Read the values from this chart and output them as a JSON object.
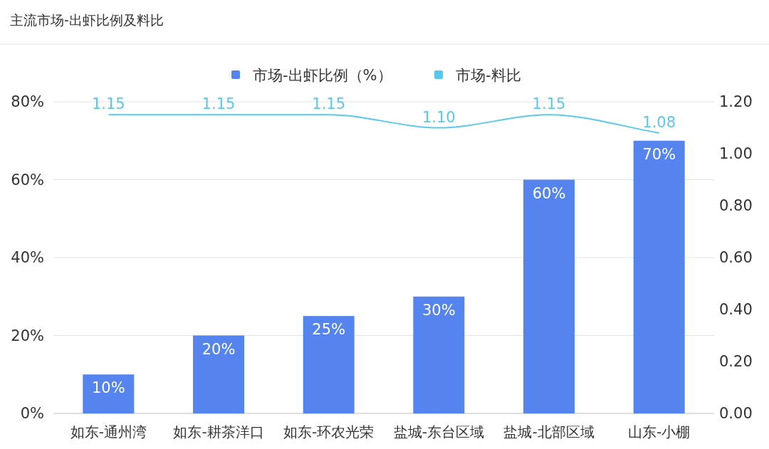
{
  "chart_data": {
    "type": "bar",
    "title": "主流市场-出虾比例及料比",
    "categories": [
      "如东-通州湾",
      "如东-耕茶洋口",
      "如东-环农光荣",
      "盐城-东台区域",
      "盐城-北部区域",
      "山东-小棚"
    ],
    "series": [
      {
        "name": "市场-出虾比例（%）",
        "color": "#5584ee",
        "values": [
          10,
          20,
          25,
          30,
          60,
          70
        ],
        "value_labels": [
          "10%",
          "20%",
          "25%",
          "30%",
          "60%",
          "70%"
        ]
      },
      {
        "name": "市场-料比",
        "type": "line",
        "axis": "y2",
        "color": "#5ac8ee",
        "values": [
          1.15,
          1.15,
          1.15,
          1.1,
          1.15,
          1.08
        ],
        "value_labels": [
          "1.15",
          "1.15",
          "1.15",
          "1.10",
          "1.15",
          "1.08"
        ]
      }
    ],
    "ylim": [
      0,
      80
    ],
    "yticks": [
      {
        "value": 0,
        "label": "0%"
      },
      {
        "value": 20,
        "label": "20%"
      },
      {
        "value": 40,
        "label": "40%"
      },
      {
        "value": 60,
        "label": "60%"
      },
      {
        "value": 80,
        "label": "80%"
      }
    ],
    "y2lim": [
      0,
      1.2
    ],
    "y2ticks": [
      {
        "value": 0,
        "label": "0.00"
      },
      {
        "value": 0.2,
        "label": "0.20"
      },
      {
        "value": 0.4,
        "label": "0.40"
      },
      {
        "value": 0.6,
        "label": "0.60"
      },
      {
        "value": 0.8,
        "label": "0.80"
      },
      {
        "value": 1.0,
        "label": "1.00"
      },
      {
        "value": 1.2,
        "label": "1.20"
      }
    ],
    "grid": "y",
    "legend": "top"
  }
}
